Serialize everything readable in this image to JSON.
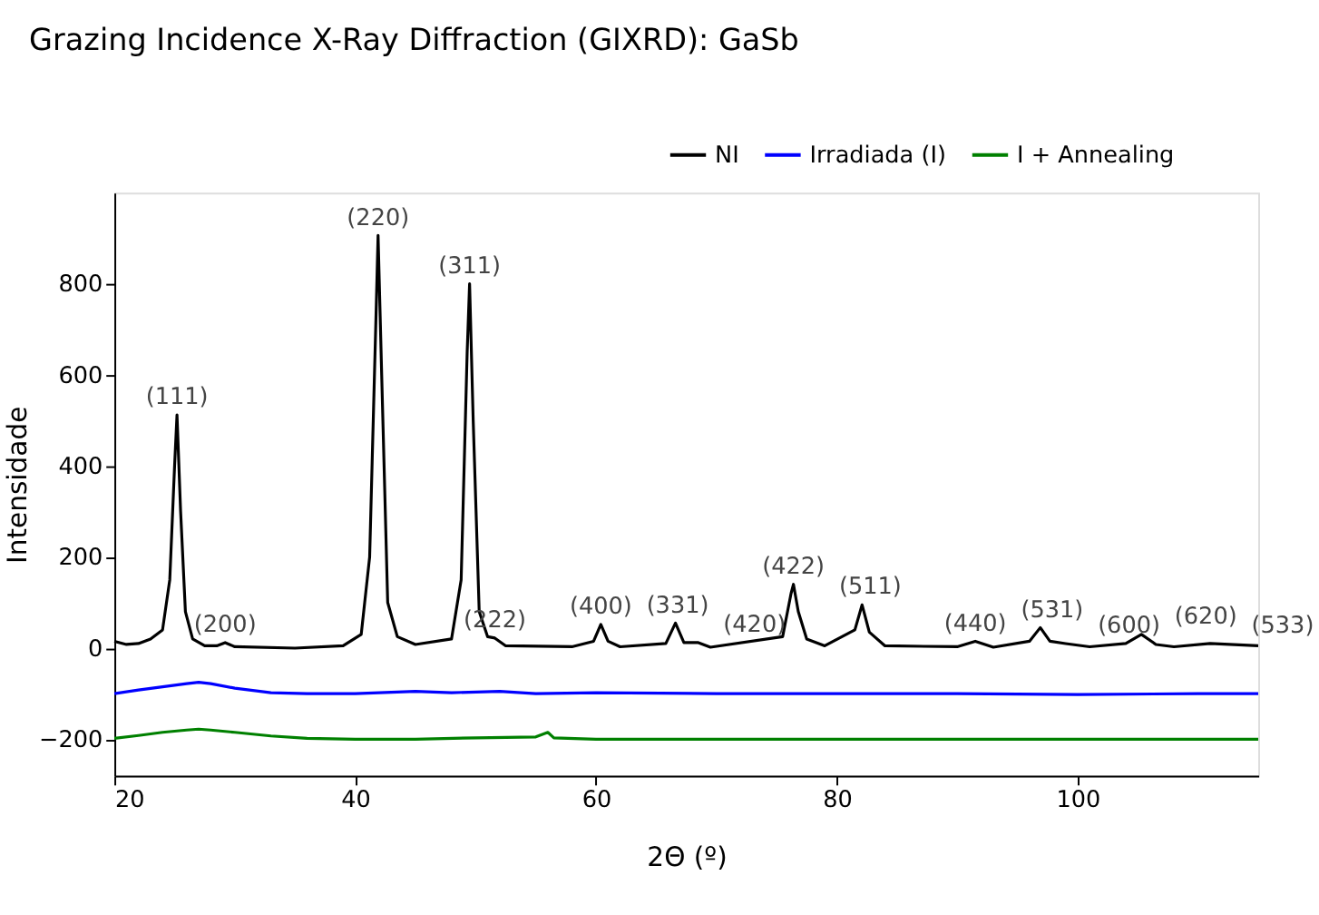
{
  "chart_data": {
    "type": "line",
    "title": "Grazing Incidence X-Ray Diffraction (GIXRD): GaSb",
    "xlabel": "2Θ (º)",
    "ylabel": "Intensidade",
    "xlim": [
      20,
      115
    ],
    "xticks": [
      20,
      40,
      60,
      80,
      100
    ],
    "ylim": [
      -280,
      1000
    ],
    "yticks": [
      -200,
      0,
      200,
      400,
      600,
      800
    ],
    "grid": false,
    "legend": "top right",
    "line_style": "solid",
    "marker": "none",
    "series": [
      {
        "name": "NI",
        "color": "#000000",
        "x": [
          20,
          21,
          22,
          23,
          24,
          24.6,
          25.0,
          25.2,
          25.5,
          25.9,
          26.5,
          27.5,
          28.5,
          29.2,
          30,
          35,
          39,
          40.5,
          41.2,
          41.7,
          41.9,
          42.2,
          42.7,
          43.5,
          45,
          48,
          48.8,
          49.3,
          49.5,
          49.8,
          50.3,
          51,
          51.6,
          52.5,
          58,
          59.8,
          60.4,
          61,
          62,
          65.8,
          66.6,
          67.3,
          68.5,
          69.5,
          75.5,
          76.2,
          76.4,
          76.8,
          77.5,
          79,
          81.5,
          82.1,
          82.7,
          84,
          90,
          91.5,
          93,
          96,
          96.9,
          97.7,
          99,
          101,
          104,
          105.3,
          106.5,
          108,
          111,
          115
        ],
        "values": [
          15,
          8,
          10,
          20,
          40,
          150,
          400,
          512,
          300,
          80,
          20,
          5,
          5,
          12,
          3,
          0,
          5,
          30,
          200,
          700,
          906,
          600,
          100,
          25,
          8,
          20,
          150,
          650,
          800,
          500,
          80,
          25,
          22,
          5,
          3,
          15,
          52,
          15,
          3,
          10,
          55,
          12,
          12,
          2,
          25,
          120,
          140,
          80,
          20,
          5,
          40,
          95,
          35,
          5,
          3,
          15,
          2,
          15,
          45,
          15,
          10,
          3,
          10,
          30,
          8,
          3,
          10,
          5
        ]
      },
      {
        "name": "Irradiada (I)",
        "color": "#0000ff",
        "x": [
          20,
          22,
          24,
          26,
          27,
          28,
          30,
          33,
          36,
          40,
          45,
          48,
          52,
          55,
          60,
          70,
          80,
          90,
          100,
          110,
          115
        ],
        "values": [
          -100,
          -92,
          -85,
          -78,
          -75,
          -78,
          -88,
          -98,
          -100,
          -100,
          -95,
          -98,
          -95,
          -100,
          -98,
          -100,
          -100,
          -100,
          -102,
          -100,
          -100
        ]
      },
      {
        "name": "I + Annealing",
        "color": "#008000",
        "x": [
          20,
          22,
          24,
          26,
          27,
          28,
          30,
          33,
          36,
          40,
          45,
          50,
          55,
          56,
          56.5,
          60,
          70,
          80,
          90,
          100,
          110,
          115
        ],
        "values": [
          -198,
          -192,
          -185,
          -180,
          -178,
          -180,
          -185,
          -193,
          -198,
          -200,
          -200,
          -197,
          -195,
          -185,
          -197,
          -200,
          -200,
          -200,
          -200,
          -200,
          -200,
          -200
        ]
      }
    ],
    "annotations": [
      {
        "text": "(111)",
        "x": 25.2,
        "y": 512
      },
      {
        "text": "(200)",
        "x": 29.2,
        "y": 12
      },
      {
        "text": "(220)",
        "x": 41.9,
        "y": 906
      },
      {
        "text": "(311)",
        "x": 49.5,
        "y": 800
      },
      {
        "text": "(222)",
        "x": 51.6,
        "y": 22
      },
      {
        "text": "(400)",
        "x": 60.4,
        "y": 52
      },
      {
        "text": "(331)",
        "x": 66.6,
        "y": 55
      },
      {
        "text": "(420)",
        "x": 68.5,
        "y": 12
      },
      {
        "text": "(422)",
        "x": 76.4,
        "y": 140
      },
      {
        "text": "(511)",
        "x": 82.1,
        "y": 95
      },
      {
        "text": "(440)",
        "x": 91.5,
        "y": 15
      },
      {
        "text": "(531)",
        "x": 96.9,
        "y": 45
      },
      {
        "text": "(600)",
        "x": 99,
        "y": 10
      },
      {
        "text": "(620)",
        "x": 105.3,
        "y": 30
      },
      {
        "text": "(533)",
        "x": 111,
        "y": 10
      }
    ]
  }
}
